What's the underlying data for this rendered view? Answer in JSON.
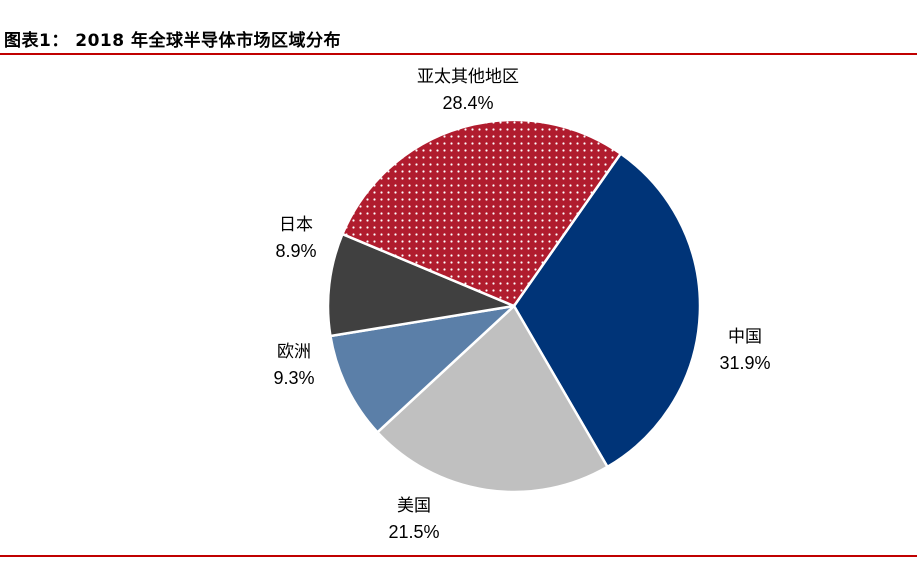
{
  "header": {
    "title": "图表1： 2018 年全球半导体市场区域分布"
  },
  "colors": {
    "rule": "#c00000",
    "background": "#ffffff"
  },
  "chart_data": {
    "type": "pie",
    "title": "",
    "start_angle_deg": 35,
    "direction": "clockwise",
    "slices": [
      {
        "name": "中国",
        "value": 31.9,
        "label": "31.9%",
        "color": "#003478",
        "pattern": "solid"
      },
      {
        "name": "美国",
        "value": 21.5,
        "label": "21.5%",
        "color": "#c0c0c0",
        "pattern": "solid"
      },
      {
        "name": "欧洲",
        "value": 9.3,
        "label": "9.3%",
        "color": "#5b7fa8",
        "pattern": "solid"
      },
      {
        "name": "日本",
        "value": 8.9,
        "label": "8.9%",
        "color": "#404040",
        "pattern": "solid"
      },
      {
        "name": "亚太其他地区",
        "value": 28.4,
        "label": "28.4%",
        "color": "#b01c2e",
        "pattern": "white-dots"
      }
    ]
  }
}
